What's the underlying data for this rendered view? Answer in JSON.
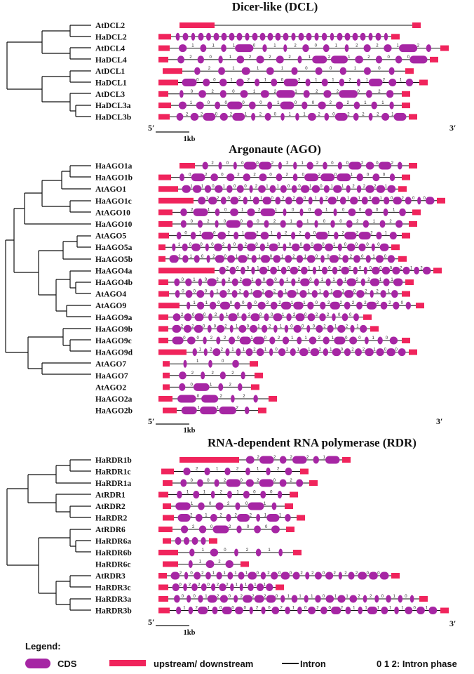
{
  "colors": {
    "cds": "#a626a4",
    "utr": "#f0245c",
    "intron": "#111111"
  },
  "scale_bar_label": "1kb",
  "five_prime": "5′",
  "three_prime": "3′",
  "sections": [
    {
      "title": "Dicer-like (DCL)",
      "genes": [
        "AtDCL2",
        "HaDCL2",
        "AtDCL4",
        "HaDCL4",
        "AtDCL1",
        "HaDCL1",
        "AtDCL3",
        "HaDCL3a",
        "HaDCL3b"
      ]
    },
    {
      "title": "Argonaute (AGO)",
      "genes": [
        "HaAGO1a",
        "HaAGO1b",
        "AtAGO1",
        "HaAGO1c",
        "AtAGO10",
        "HaAGO10",
        "AtAGO5",
        "HaAGO5a",
        "HaAGO5b",
        "HaAGO4a",
        "HaAGO4b",
        "AtAGO4",
        "AtAGO9",
        "HaAGO9a",
        "HaAGO9b",
        "HaAGO9c",
        "HaAGO9d",
        "AtAGO7",
        "HaAGO7",
        "AtAGO2",
        "HaAGO2a",
        "HaAGO2b"
      ]
    },
    {
      "title": "RNA-dependent RNA polymerase (RDR)",
      "genes": [
        "HaRDR1b",
        "HaRDR1c",
        "HaRDR1a",
        "AtRDR1",
        "AtRDR2",
        "HaRDR2",
        "AtRDR6",
        "HaRDR6a",
        "HaRDR6b",
        "HaRDR6c",
        "AtRDR3",
        "HaRDR3c",
        "HaRDR3a",
        "HaRDR3b"
      ]
    }
  ],
  "legend": {
    "title": "Legend:",
    "cds": "CDS",
    "utr": "upstream/ downstream",
    "intron": "Intron",
    "phase": "0  1  2: Intron phase"
  }
}
